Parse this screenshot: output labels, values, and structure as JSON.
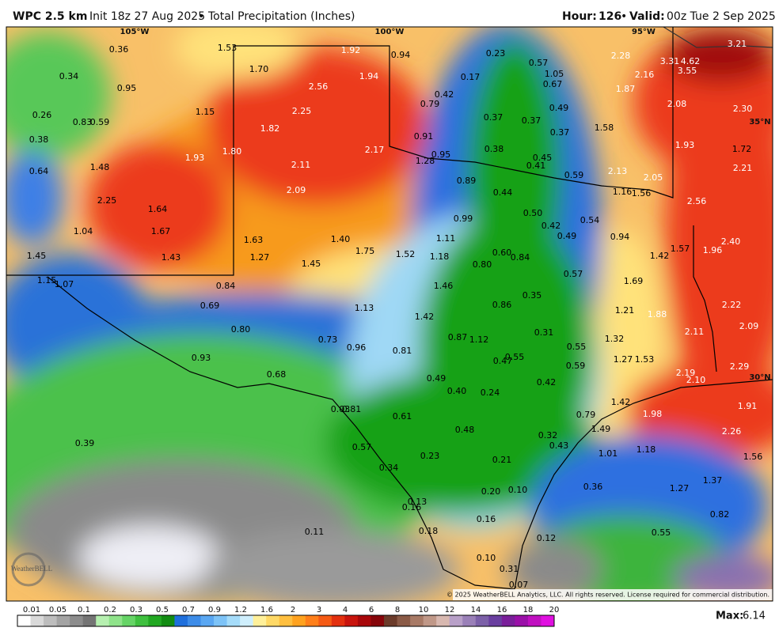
{
  "header": {
    "model": "WPC 2.5 km",
    "init": "Init 18z 27 Aug 2025",
    "separator": "•",
    "product": "Total Precipitation (Inches)",
    "hour_label": "Hour:",
    "hour": "126",
    "valid_label": "Valid:",
    "valid": "00z Tue 2 Sep 2025"
  },
  "map": {
    "grid_labels": [
      "105°W",
      "100°W",
      "95°W",
      "35°N",
      "30°N"
    ],
    "values": [
      "0.36",
      "1.53",
      "1.92",
      "0.94",
      "0.23",
      "0.57",
      "2.28",
      "3.21",
      "3.31",
      "4.62",
      "3.55",
      "0.34",
      "1.70",
      "1.94",
      "0.17",
      "1.05",
      "2.16",
      "0.95",
      "2.56",
      "0.42",
      "0.67",
      "1.87",
      "0.79",
      "1.15",
      "2.25",
      "0.49",
      "2.08",
      "2.30",
      "0.26",
      "0.37",
      "0.37",
      "0.83",
      "0.59",
      "1.58",
      "0.37",
      "1.82",
      "0.38",
      "0.91",
      "1.93",
      "1.72",
      "0.38",
      "2.17",
      "1.80",
      "1.93",
      "0.95",
      "0.45",
      "1.28",
      "0.41",
      "2.21",
      "1.48",
      "2.11",
      "0.64",
      "2.13",
      "0.59",
      "2.05",
      "0.89",
      "2.09",
      "1.16",
      "1.56",
      "0.44",
      "2.56",
      "2.25",
      "1.64",
      "0.50",
      "0.99",
      "0.54",
      "0.42",
      "1.04",
      "1.67",
      "1.11",
      "0.49",
      "0.94",
      "2.40",
      "1.63",
      "1.40",
      "1.75",
      "1.52",
      "1.57",
      "1.96",
      "1.45",
      "1.43",
      "1.27",
      "1.18",
      "0.60",
      "0.84",
      "1.42",
      "1.45",
      "0.80",
      "0.57",
      "1.15",
      "1.07",
      "1.69",
      "0.84",
      "1.46",
      "0.35",
      "2.22",
      "0.69",
      "1.13",
      "0.86",
      "1.21",
      "1.88",
      "1.42",
      "2.09",
      "0.80",
      "2.11",
      "0.31",
      "0.73",
      "0.87",
      "1.12",
      "1.32",
      "0.96",
      "0.81",
      "0.55",
      "0.93",
      "0.47",
      "0.55",
      "1.27",
      "1.53",
      "0.59",
      "2.29",
      "2.19",
      "2.10",
      "0.68",
      "0.49",
      "0.42",
      "0.40",
      "0.24",
      "1.91",
      "1.42",
      "1.98",
      "0.79",
      "0.03",
      "0.81",
      "0.61",
      "2.26",
      "1.49",
      "0.48",
      "0.32",
      "0.39",
      "0.57",
      "0.43",
      "1.01",
      "1.18",
      "1.56",
      "0.23",
      "0.21",
      "0.34",
      "1.37",
      "0.36",
      "1.27",
      "0.20",
      "0.10",
      "0.13",
      "0.16",
      "0.82",
      "0.16",
      "0.11",
      "0.18",
      "0.55",
      "0.12",
      "0.10",
      "0.31",
      "0.07"
    ]
  },
  "copyright": "© 2025 WeatherBELL Analytics, LLC. All rights reserved. License required for commercial distribution.",
  "logo": "WeatherBELL",
  "legend": {
    "ticks": [
      "0.01",
      "0.05",
      "0.1",
      "0.2",
      "0.3",
      "0.5",
      "0.7",
      "0.9",
      "1.2",
      "1.6",
      "2",
      "3",
      "4",
      "6",
      "8",
      "10",
      "12",
      "14",
      "16",
      "18",
      "20"
    ]
  },
  "max": {
    "label": "Max:",
    "value": "6.14"
  }
}
